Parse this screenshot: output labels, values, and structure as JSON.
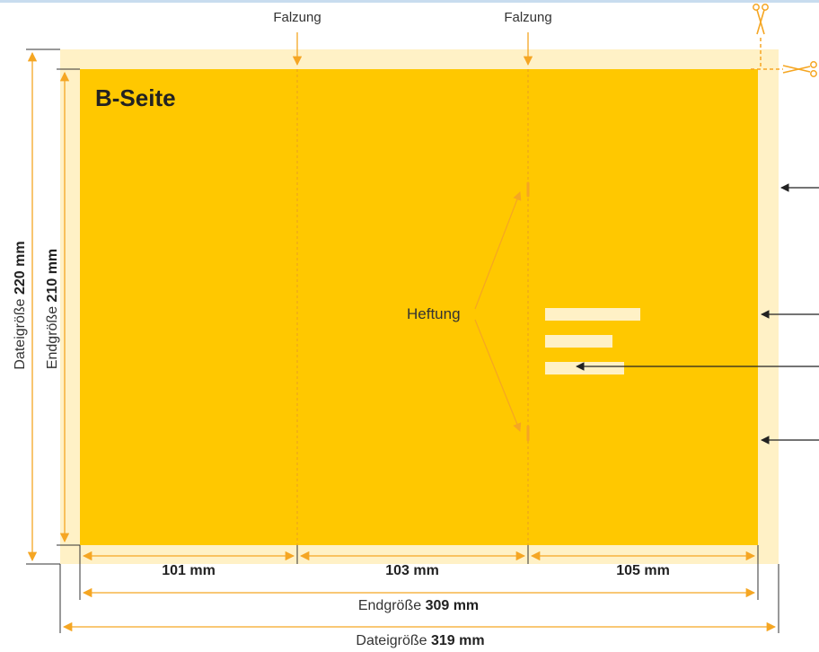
{
  "fold_labels": [
    "Falzung",
    "Falzung"
  ],
  "side_label": "B-Seite",
  "staple_label": "Heftung",
  "panels": [
    {
      "prefix": "",
      "value": "101 mm"
    },
    {
      "prefix": "",
      "value": "103 mm"
    },
    {
      "prefix": "",
      "value": "105 mm"
    }
  ],
  "final_width": {
    "prefix": "Endgröße ",
    "value": "309 mm"
  },
  "file_width": {
    "prefix": "Dateigröße ",
    "value": "319 mm"
  },
  "final_height": {
    "prefix": "Endgröße ",
    "value": "210 mm"
  },
  "file_height": {
    "prefix": "Dateigröße ",
    "value": "220 mm"
  },
  "colors": {
    "bleed": "#fff1c6",
    "trim": "#ffc800",
    "dimension": "#f5a623",
    "fold": "#e8a020",
    "text_placeholder": "#fff1c6",
    "pointer": "#222222",
    "top_bar": "#c8dcef"
  },
  "icons": [
    "scissors-icon",
    "scissors-icon"
  ]
}
